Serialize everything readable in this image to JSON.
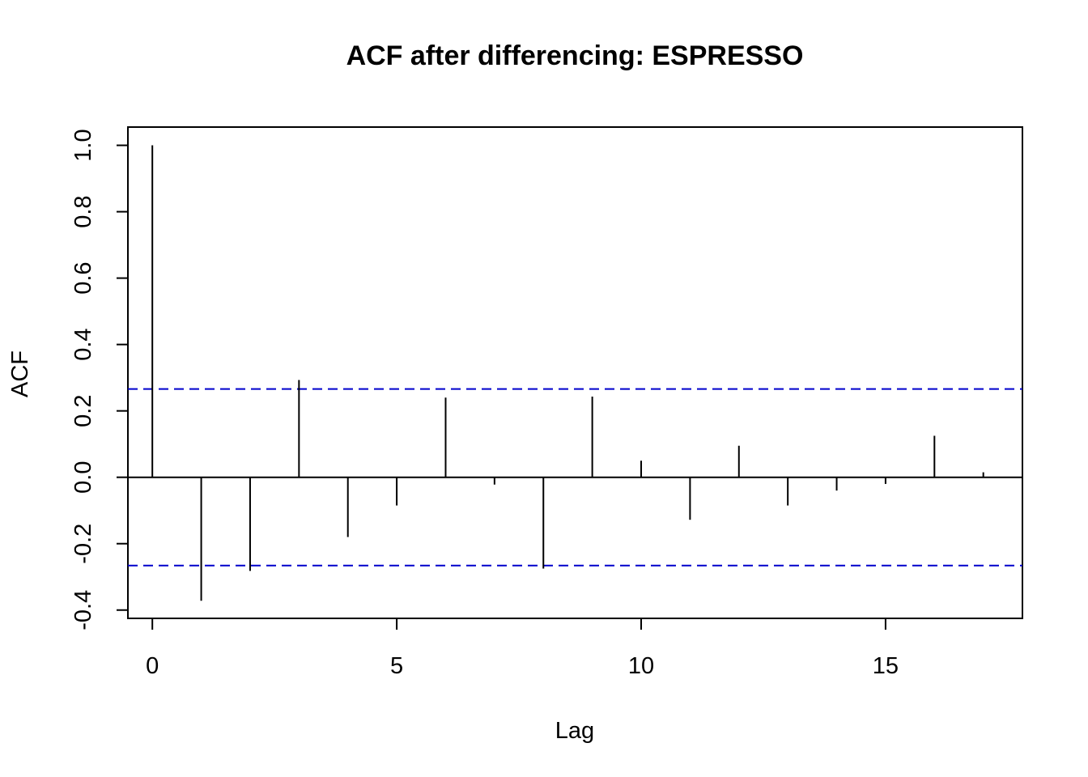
{
  "chart_data": {
    "type": "bar",
    "title": "ACF after differencing: ESPRESSO",
    "xlabel": "Lag",
    "ylabel": "ACF",
    "lags": [
      0,
      1,
      2,
      3,
      4,
      5,
      6,
      7,
      8,
      9,
      10,
      11,
      12,
      13,
      14,
      15,
      16,
      17
    ],
    "values": [
      1.0,
      -0.372,
      -0.282,
      0.293,
      -0.18,
      -0.085,
      0.24,
      -0.022,
      -0.275,
      0.243,
      0.05,
      -0.128,
      0.095,
      -0.085,
      -0.04,
      -0.02,
      0.125,
      0.015
    ],
    "confidence_bound": 0.266,
    "xlim": [
      -0.5,
      17.8
    ],
    "ylim": [
      -0.425,
      1.055
    ],
    "x_ticks": [
      0,
      5,
      10,
      15
    ],
    "x_tick_labels": [
      "0",
      "5",
      "10",
      "15"
    ],
    "y_ticks": [
      -0.4,
      -0.2,
      0.0,
      0.2,
      0.4,
      0.6,
      0.8,
      1.0
    ],
    "y_tick_labels": [
      "-0.4",
      "-0.2",
      "0.0",
      "0.2",
      "0.4",
      "0.6",
      "0.8",
      "1.0"
    ],
    "grid": false,
    "colors": {
      "spikes": "#000000",
      "confidence": "#0000cc"
    }
  }
}
